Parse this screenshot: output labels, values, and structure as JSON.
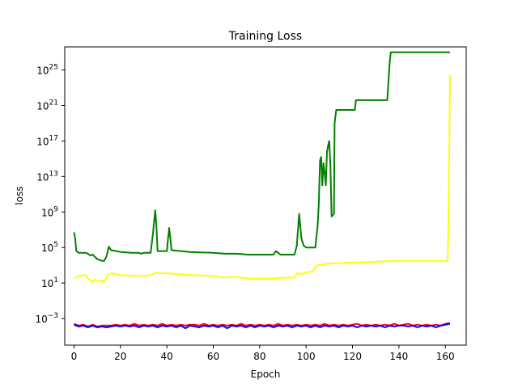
{
  "chart_data": {
    "type": "line",
    "title": "Training Loss",
    "xlabel": "Epoch",
    "ylabel": "loss",
    "xlim": [
      -4,
      169
    ],
    "x_ticks": [
      0,
      20,
      40,
      60,
      80,
      100,
      120,
      140,
      160
    ],
    "y_scale": "log",
    "ylim_log10": [
      -6,
      27.6
    ],
    "y_ticks": [
      {
        "base": "10",
        "exp": "−3",
        "value": -3
      },
      {
        "base": "10",
        "exp": "1",
        "value": 1
      },
      {
        "base": "10",
        "exp": "5",
        "value": 5
      },
      {
        "base": "10",
        "exp": "9",
        "value": 9
      },
      {
        "base": "10",
        "exp": "13",
        "value": 13
      },
      {
        "base": "10",
        "exp": "17",
        "value": 17
      },
      {
        "base": "10",
        "exp": "21",
        "value": 21
      },
      {
        "base": "10",
        "exp": "25",
        "value": 25
      }
    ],
    "grid": false,
    "series": [
      {
        "color": "#008000",
        "log10_points": [
          [
            0,
            6.7
          ],
          [
            0.5,
            6.0
          ],
          [
            1,
            4.6
          ],
          [
            2,
            4.4
          ],
          [
            5,
            4.4
          ],
          [
            6,
            4.3
          ],
          [
            7,
            4.1
          ],
          [
            8,
            4.2
          ],
          [
            10,
            3.7
          ],
          [
            11,
            3.6
          ],
          [
            12,
            3.5
          ],
          [
            13,
            3.5
          ],
          [
            14,
            4.0
          ],
          [
            15,
            5.1
          ],
          [
            16,
            4.7
          ],
          [
            20,
            4.5
          ],
          [
            25,
            4.4
          ],
          [
            28,
            4.4
          ],
          [
            29,
            4.3
          ],
          [
            30,
            4.4
          ],
          [
            33,
            4.4
          ],
          [
            34,
            6.5
          ],
          [
            35,
            9.2
          ],
          [
            35.5,
            7.5
          ],
          [
            36,
            4.6
          ],
          [
            40,
            4.6
          ],
          [
            40.5,
            6.0
          ],
          [
            41,
            7.2
          ],
          [
            41.5,
            6.0
          ],
          [
            42,
            4.7
          ],
          [
            50,
            4.5
          ],
          [
            60,
            4.4
          ],
          [
            65,
            4.3
          ],
          [
            70,
            4.3
          ],
          [
            75,
            4.2
          ],
          [
            80,
            4.2
          ],
          [
            86,
            4.2
          ],
          [
            87,
            4.6
          ],
          [
            88,
            4.4
          ],
          [
            89,
            4.2
          ],
          [
            95,
            4.2
          ],
          [
            96,
            5.2
          ],
          [
            97,
            8.8
          ],
          [
            98,
            6.0
          ],
          [
            99,
            5.2
          ],
          [
            100,
            5.0
          ],
          [
            102,
            5.0
          ],
          [
            104,
            5.0
          ],
          [
            105,
            7.5
          ],
          [
            105.5,
            10.0
          ],
          [
            106,
            14.8
          ],
          [
            106.5,
            15.2
          ],
          [
            107,
            12.0
          ],
          [
            107.5,
            14.5
          ],
          [
            108,
            13.4
          ],
          [
            108.5,
            12.0
          ],
          [
            109,
            15.8
          ],
          [
            109.5,
            16.5
          ],
          [
            110,
            17.0
          ],
          [
            110.5,
            14.0
          ],
          [
            111,
            8.5
          ],
          [
            112,
            8.8
          ],
          [
            112.3,
            19.0
          ],
          [
            113,
            20.5
          ],
          [
            117,
            20.5
          ],
          [
            121,
            20.5
          ],
          [
            121.5,
            21.6
          ],
          [
            125,
            21.6
          ],
          [
            135,
            21.6
          ],
          [
            136,
            25.8
          ],
          [
            136.5,
            27.0
          ],
          [
            150,
            27.0
          ],
          [
            162,
            27.0
          ]
        ]
      },
      {
        "color": "#ffff00",
        "log10_points": [
          [
            0,
            1.5
          ],
          [
            1,
            1.7
          ],
          [
            2,
            1.8
          ],
          [
            5,
            1.9
          ],
          [
            6,
            1.5
          ],
          [
            7,
            1.3
          ],
          [
            8,
            1.1
          ],
          [
            9,
            1.4
          ],
          [
            10,
            1.3
          ],
          [
            11,
            1.1
          ],
          [
            12,
            1.3
          ],
          [
            13,
            1.1
          ],
          [
            14,
            1.6
          ],
          [
            15,
            2.0
          ],
          [
            16,
            2.1
          ],
          [
            20,
            1.9
          ],
          [
            25,
            1.8
          ],
          [
            30,
            1.8
          ],
          [
            33,
            1.9
          ],
          [
            35,
            2.1
          ],
          [
            40,
            2.1
          ],
          [
            45,
            2.0
          ],
          [
            50,
            1.9
          ],
          [
            60,
            1.8
          ],
          [
            65,
            1.6
          ],
          [
            70,
            1.7
          ],
          [
            75,
            1.5
          ],
          [
            80,
            1.5
          ],
          [
            85,
            1.5
          ],
          [
            90,
            1.6
          ],
          [
            95,
            1.6
          ],
          [
            96,
            2.1
          ],
          [
            98,
            2.0
          ],
          [
            100,
            2.2
          ],
          [
            103,
            2.3
          ],
          [
            104,
            2.8
          ],
          [
            105,
            3.0
          ],
          [
            107,
            3.1
          ],
          [
            110,
            3.2
          ],
          [
            120,
            3.3
          ],
          [
            130,
            3.4
          ],
          [
            140,
            3.5
          ],
          [
            150,
            3.5
          ],
          [
            161,
            3.5
          ],
          [
            161.5,
            10.0
          ],
          [
            162,
            24.5
          ]
        ]
      },
      {
        "color": "#ff0000",
        "log10_points": [
          [
            0,
            -3.6
          ],
          [
            2,
            -3.8
          ],
          [
            4,
            -3.7
          ],
          [
            6,
            -3.9
          ],
          [
            8,
            -3.7
          ],
          [
            10,
            -3.9
          ],
          [
            12,
            -3.8
          ],
          [
            14,
            -3.8
          ],
          [
            16,
            -3.8
          ],
          [
            18,
            -3.7
          ],
          [
            20,
            -3.8
          ],
          [
            22,
            -3.7
          ],
          [
            24,
            -3.8
          ],
          [
            26,
            -3.6
          ],
          [
            28,
            -3.8
          ],
          [
            30,
            -3.7
          ],
          [
            32,
            -3.8
          ],
          [
            34,
            -3.7
          ],
          [
            36,
            -3.8
          ],
          [
            38,
            -3.6
          ],
          [
            40,
            -3.8
          ],
          [
            42,
            -3.7
          ],
          [
            44,
            -3.8
          ],
          [
            46,
            -3.7
          ],
          [
            48,
            -3.8
          ],
          [
            50,
            -3.7
          ],
          [
            52,
            -3.7
          ],
          [
            54,
            -3.8
          ],
          [
            56,
            -3.6
          ],
          [
            58,
            -3.8
          ],
          [
            60,
            -3.7
          ],
          [
            62,
            -3.8
          ],
          [
            64,
            -3.7
          ],
          [
            66,
            -3.8
          ],
          [
            68,
            -3.7
          ],
          [
            70,
            -3.8
          ],
          [
            72,
            -3.6
          ],
          [
            74,
            -3.8
          ],
          [
            76,
            -3.7
          ],
          [
            78,
            -3.8
          ],
          [
            80,
            -3.7
          ],
          [
            82,
            -3.8
          ],
          [
            84,
            -3.7
          ],
          [
            86,
            -3.8
          ],
          [
            88,
            -3.6
          ],
          [
            90,
            -3.8
          ],
          [
            92,
            -3.7
          ],
          [
            94,
            -3.8
          ],
          [
            96,
            -3.7
          ],
          [
            98,
            -3.8
          ],
          [
            100,
            -3.7
          ],
          [
            102,
            -3.8
          ],
          [
            104,
            -3.7
          ],
          [
            106,
            -3.8
          ],
          [
            108,
            -3.6
          ],
          [
            110,
            -3.8
          ],
          [
            112,
            -3.7
          ],
          [
            114,
            -3.8
          ],
          [
            116,
            -3.7
          ],
          [
            118,
            -3.8
          ],
          [
            120,
            -3.7
          ],
          [
            122,
            -3.6
          ],
          [
            124,
            -3.8
          ],
          [
            126,
            -3.7
          ],
          [
            128,
            -3.8
          ],
          [
            130,
            -3.7
          ],
          [
            132,
            -3.8
          ],
          [
            134,
            -3.7
          ],
          [
            136,
            -3.8
          ],
          [
            138,
            -3.6
          ],
          [
            140,
            -3.8
          ],
          [
            142,
            -3.7
          ],
          [
            144,
            -3.6
          ],
          [
            146,
            -3.8
          ],
          [
            148,
            -3.7
          ],
          [
            150,
            -3.8
          ],
          [
            152,
            -3.7
          ],
          [
            154,
            -3.8
          ],
          [
            156,
            -3.7
          ],
          [
            158,
            -3.8
          ],
          [
            160,
            -3.6
          ],
          [
            162,
            -3.5
          ]
        ]
      },
      {
        "color": "#0000ff",
        "log10_points": [
          [
            0,
            -3.7
          ],
          [
            2,
            -3.9
          ],
          [
            4,
            -3.8
          ],
          [
            6,
            -4.0
          ],
          [
            8,
            -3.8
          ],
          [
            10,
            -4.0
          ],
          [
            12,
            -3.9
          ],
          [
            14,
            -4.0
          ],
          [
            16,
            -3.9
          ],
          [
            18,
            -3.8
          ],
          [
            20,
            -3.9
          ],
          [
            22,
            -3.8
          ],
          [
            24,
            -3.9
          ],
          [
            26,
            -3.8
          ],
          [
            28,
            -4.0
          ],
          [
            30,
            -3.8
          ],
          [
            32,
            -3.9
          ],
          [
            34,
            -3.8
          ],
          [
            36,
            -4.0
          ],
          [
            38,
            -3.8
          ],
          [
            40,
            -3.9
          ],
          [
            42,
            -3.8
          ],
          [
            44,
            -4.0
          ],
          [
            46,
            -3.8
          ],
          [
            48,
            -4.1
          ],
          [
            50,
            -3.8
          ],
          [
            52,
            -3.9
          ],
          [
            54,
            -4.0
          ],
          [
            56,
            -3.8
          ],
          [
            58,
            -3.9
          ],
          [
            60,
            -3.8
          ],
          [
            62,
            -4.0
          ],
          [
            64,
            -3.8
          ],
          [
            66,
            -4.1
          ],
          [
            68,
            -3.8
          ],
          [
            70,
            -3.9
          ],
          [
            72,
            -3.8
          ],
          [
            74,
            -4.0
          ],
          [
            76,
            -3.8
          ],
          [
            78,
            -4.0
          ],
          [
            80,
            -3.8
          ],
          [
            82,
            -3.9
          ],
          [
            84,
            -3.8
          ],
          [
            86,
            -4.0
          ],
          [
            88,
            -3.8
          ],
          [
            90,
            -3.9
          ],
          [
            92,
            -3.8
          ],
          [
            94,
            -4.0
          ],
          [
            96,
            -3.8
          ],
          [
            98,
            -3.9
          ],
          [
            100,
            -3.8
          ],
          [
            102,
            -4.0
          ],
          [
            104,
            -3.8
          ],
          [
            106,
            -4.0
          ],
          [
            108,
            -3.8
          ],
          [
            110,
            -3.9
          ],
          [
            112,
            -3.8
          ],
          [
            114,
            -4.0
          ],
          [
            116,
            -3.8
          ],
          [
            118,
            -3.9
          ],
          [
            120,
            -3.8
          ],
          [
            122,
            -4.0
          ],
          [
            124,
            -3.8
          ],
          [
            126,
            -3.9
          ],
          [
            128,
            -3.8
          ],
          [
            130,
            -3.9
          ],
          [
            132,
            -3.8
          ],
          [
            134,
            -4.0
          ],
          [
            136,
            -3.8
          ],
          [
            138,
            -3.9
          ],
          [
            140,
            -3.8
          ],
          [
            142,
            -3.8
          ],
          [
            144,
            -3.9
          ],
          [
            146,
            -3.8
          ],
          [
            148,
            -4.0
          ],
          [
            150,
            -3.8
          ],
          [
            152,
            -3.9
          ],
          [
            154,
            -3.8
          ],
          [
            156,
            -4.0
          ],
          [
            158,
            -3.8
          ],
          [
            160,
            -3.7
          ],
          [
            162,
            -3.6
          ]
        ]
      }
    ]
  }
}
